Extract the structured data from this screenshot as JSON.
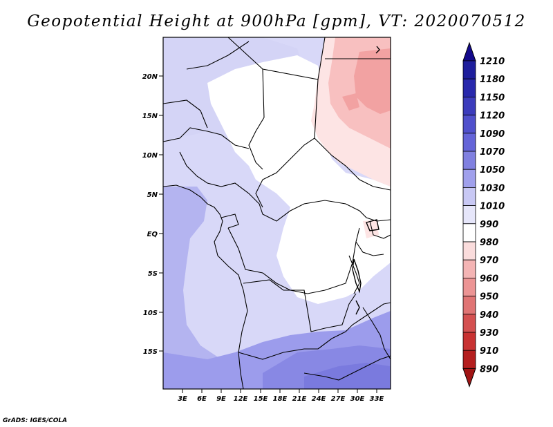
{
  "title": "Geopotential Height at 900hPa [gpm], VT: 2020070512",
  "credit": "GrADS: IGES/COLA",
  "map": {
    "lat_ticks": [
      "20N",
      "15N",
      "10N",
      "5N",
      "EQ",
      "5S",
      "10S",
      "15S"
    ],
    "lon_ticks": [
      "3E",
      "6E",
      "9E",
      "12E",
      "15E",
      "18E",
      "21E",
      "24E",
      "27E",
      "30E",
      "33E"
    ]
  },
  "colorbar": {
    "levels": [
      "1210",
      "1180",
      "1150",
      "1120",
      "1090",
      "1070",
      "1050",
      "1030",
      "1010",
      "990",
      "980",
      "970",
      "960",
      "950",
      "940",
      "930",
      "910",
      "890"
    ],
    "colors": [
      "#140a8c",
      "#1e1e9c",
      "#2828ac",
      "#3c3cbc",
      "#5050cc",
      "#6464d8",
      "#8080e0",
      "#a0a0ec",
      "#c8c8f4",
      "#e6e6fa",
      "#ffffff",
      "#fadcdc",
      "#f4b4b4",
      "#ec9494",
      "#e07474",
      "#d45050",
      "#c83232",
      "#b41e1e",
      "#a01414"
    ]
  }
}
